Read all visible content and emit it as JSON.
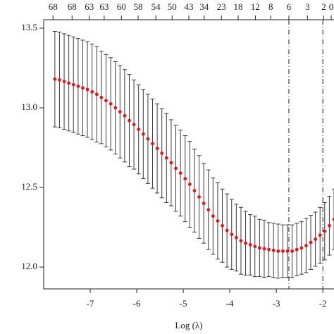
{
  "chart_data": {
    "type": "errorbar",
    "x_label": "Log (λ)",
    "x": [
      -7.76,
      -7.66,
      -7.56,
      -7.46,
      -7.36,
      -7.26,
      -7.16,
      -7.06,
      -6.96,
      -6.86,
      -6.76,
      -6.66,
      -6.56,
      -6.46,
      -6.36,
      -6.26,
      -6.16,
      -6.06,
      -5.96,
      -5.86,
      -5.76,
      -5.66,
      -5.56,
      -5.46,
      -5.36,
      -5.26,
      -5.16,
      -5.06,
      -4.96,
      -4.86,
      -4.76,
      -4.66,
      -4.56,
      -4.46,
      -4.36,
      -4.26,
      -4.16,
      -4.06,
      -3.96,
      -3.86,
      -3.76,
      -3.66,
      -3.56,
      -3.46,
      -3.36,
      -3.26,
      -3.16,
      -3.06,
      -2.96,
      -2.86,
      -2.76,
      -2.66,
      -2.56,
      -2.46,
      -2.36,
      -2.26,
      -2.16,
      -2.06,
      -1.96,
      -1.86,
      -1.76
    ],
    "values": [
      13.18,
      13.175,
      13.165,
      13.155,
      13.145,
      13.135,
      13.125,
      13.115,
      13.1,
      13.085,
      13.065,
      13.045,
      13.025,
      13.0,
      12.975,
      12.95,
      12.92,
      12.895,
      12.865,
      12.835,
      12.805,
      12.775,
      12.745,
      12.715,
      12.685,
      12.655,
      12.62,
      12.59,
      12.555,
      12.52,
      12.48,
      12.44,
      12.4,
      12.36,
      12.32,
      12.29,
      12.26,
      12.23,
      12.205,
      12.185,
      12.165,
      12.15,
      12.14,
      12.13,
      12.12,
      12.115,
      12.11,
      12.105,
      12.1,
      12.1,
      12.1,
      12.1,
      12.11,
      12.12,
      12.135,
      12.155,
      12.175,
      12.2,
      12.225,
      12.26,
      12.3
    ],
    "errors": [
      0.3,
      0.3,
      0.3,
      0.3,
      0.3,
      0.3,
      0.3,
      0.3,
      0.3,
      0.3,
      0.29,
      0.29,
      0.29,
      0.29,
      0.29,
      0.29,
      0.29,
      0.28,
      0.28,
      0.28,
      0.28,
      0.28,
      0.28,
      0.28,
      0.28,
      0.27,
      0.27,
      0.27,
      0.27,
      0.27,
      0.26,
      0.26,
      0.25,
      0.25,
      0.24,
      0.24,
      0.23,
      0.23,
      0.22,
      0.21,
      0.21,
      0.2,
      0.19,
      0.19,
      0.18,
      0.18,
      0.17,
      0.17,
      0.17,
      0.165,
      0.165,
      0.165,
      0.165,
      0.165,
      0.17,
      0.17,
      0.17,
      0.175,
      0.18,
      0.185,
      0.19
    ],
    "color": "#e8141c",
    "bar_color": "#3a3a3a",
    "vlines": [
      -2.73,
      -2.0
    ],
    "xlim": [
      -8.0,
      -1.76
    ],
    "ylim": [
      11.863,
      13.553
    ],
    "xticks": [
      -7,
      -6,
      -5,
      -4,
      -3,
      -2
    ],
    "yticks": [
      {
        "value": 12,
        "label": "12.0"
      },
      12.5,
      {
        "value": 13,
        "label": "13.0"
      },
      13.5
    ],
    "top_ticks": [
      {
        "value": -7.8,
        "label": "68"
      },
      {
        "value": -7.39,
        "label": "68"
      },
      {
        "value": -7.02,
        "label": "63"
      },
      {
        "value": -6.7,
        "label": "63"
      },
      {
        "value": -6.33,
        "label": "60"
      },
      {
        "value": -5.97,
        "label": "58"
      },
      {
        "value": -5.59,
        "label": "54"
      },
      {
        "value": -5.24,
        "label": "50"
      },
      {
        "value": -4.88,
        "label": "43"
      },
      {
        "value": -4.55,
        "label": "34"
      },
      {
        "value": -4.18,
        "label": "23"
      },
      {
        "value": -3.82,
        "label": "18"
      },
      {
        "value": -3.45,
        "label": "12"
      },
      {
        "value": -3.12,
        "label": "8"
      },
      {
        "value": -2.73,
        "label": "6"
      },
      {
        "value": -2.33,
        "label": "3"
      },
      {
        "value": -1.98,
        "label": "2"
      },
      {
        "value": -1.82,
        "label": "0"
      }
    ]
  }
}
